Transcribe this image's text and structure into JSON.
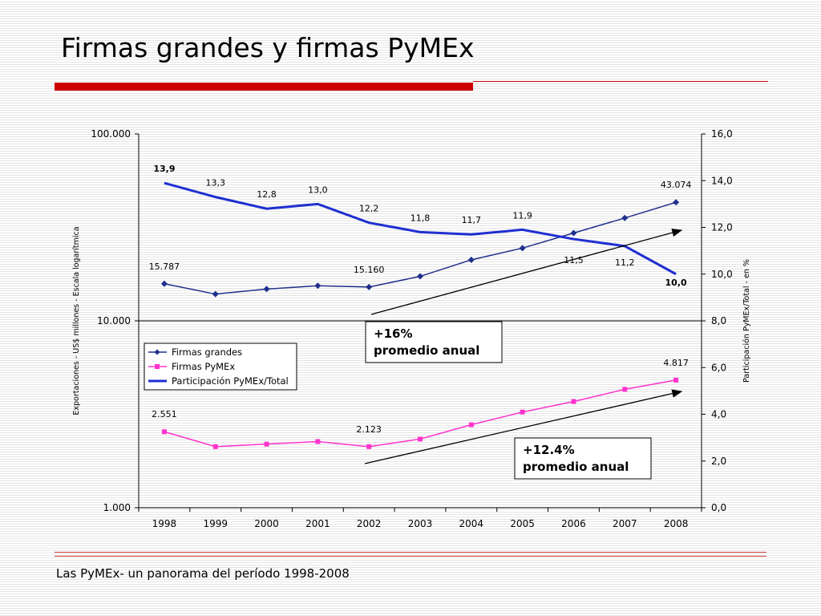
{
  "slide": {
    "title": "Firmas grandes y firmas PyMEx",
    "footer": "Las PyMEx- un panorama del período 1998-2008",
    "accent_color": "#cc0000"
  },
  "chart_data": {
    "type": "line",
    "xlabel": "",
    "ylabel": "Exportaciones - US$ millones - Escala logarítmica",
    "ylabel_right": "Participación PyMEx/Total - en %",
    "y_scale": "log",
    "ylim": [
      1000,
      100000
    ],
    "y_ticks": [
      "1.000",
      "10.000",
      "100.000"
    ],
    "y_tick_values": [
      1000,
      10000,
      100000
    ],
    "y2lim": [
      0,
      16
    ],
    "y2_ticks": [
      "0,0",
      "2,0",
      "4,0",
      "6,0",
      "8,0",
      "10,0",
      "12,0",
      "14,0",
      "16,0"
    ],
    "y2_tick_values": [
      0,
      2,
      4,
      6,
      8,
      10,
      12,
      14,
      16
    ],
    "categories": [
      "1998",
      "1999",
      "2000",
      "2001",
      "2002",
      "2003",
      "2004",
      "2005",
      "2006",
      "2007",
      "2008"
    ],
    "grid": false,
    "legend_position": "center-left",
    "series": [
      {
        "name": "Firmas grandes",
        "axis": "left",
        "color": "#1f2f8c",
        "marker": "diamond",
        "values": [
          15787,
          13900,
          14800,
          15400,
          15160,
          17300,
          21200,
          24500,
          29500,
          35500,
          43074
        ],
        "labels": [
          "15.787",
          "",
          "",
          "",
          "15.160",
          "",
          "",
          "",
          "",
          "",
          "43.074"
        ]
      },
      {
        "name": "Firmas PyMEx",
        "axis": "left",
        "color": "#ff33cc",
        "marker": "square",
        "values": [
          2551,
          2123,
          2190,
          2260,
          2123,
          2330,
          2780,
          3250,
          3700,
          4300,
          4817
        ],
        "labels": [
          "2.551",
          "",
          "",
          "",
          "2.123",
          "",
          "",
          "",
          "",
          "",
          "4.817"
        ]
      },
      {
        "name": "Participación PyMEx/Total",
        "axis": "right",
        "color": "#1f2fd0",
        "marker": "none",
        "values": [
          13.9,
          13.3,
          12.8,
          13.0,
          12.2,
          11.8,
          11.7,
          11.9,
          11.5,
          11.2,
          10.0
        ],
        "labels": [
          "13,9",
          "13,3",
          "12,8",
          "13,0",
          "12,2",
          "11,8",
          "11,7",
          "11,9",
          "11,5",
          "11,2",
          "10,0"
        ]
      }
    ],
    "annotations": [
      {
        "text_lines": [
          "+16%",
          "promedio anual"
        ],
        "refers_to": "Firmas grandes"
      },
      {
        "text_lines": [
          "+12.4%",
          "promedio anual"
        ],
        "refers_to": "Firmas PyMEx"
      }
    ]
  }
}
